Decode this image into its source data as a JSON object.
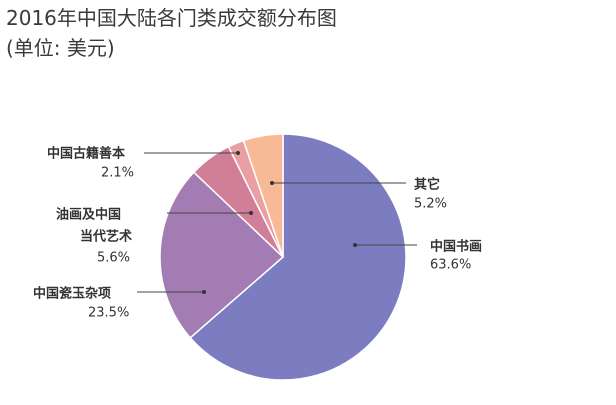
{
  "header": {
    "title": "2016年中国大陆各门类成交额分布图",
    "subtitle": "(单位: 美元)"
  },
  "chart_data": {
    "type": "pie",
    "slices": [
      {
        "name": "中国书画",
        "value": 63.6,
        "label_value": "63.6%",
        "color": "#7c7cc1"
      },
      {
        "name": "中国瓷玉杂项",
        "value": 23.5,
        "label_value": "23.5%",
        "color": "#a47cb4"
      },
      {
        "name": "油画及中国当代艺术",
        "value": 5.6,
        "label_value": "5.6%",
        "color": "#d17f99"
      },
      {
        "name": "中国古籍善本",
        "value": 2.1,
        "label_value": "2.1%",
        "color": "#eaa0a2"
      },
      {
        "name": "其它",
        "value": 5.2,
        "label_value": "5.2%",
        "color": "#f8b996"
      }
    ],
    "start": "12 o'clock",
    "direction": "clockwise"
  }
}
